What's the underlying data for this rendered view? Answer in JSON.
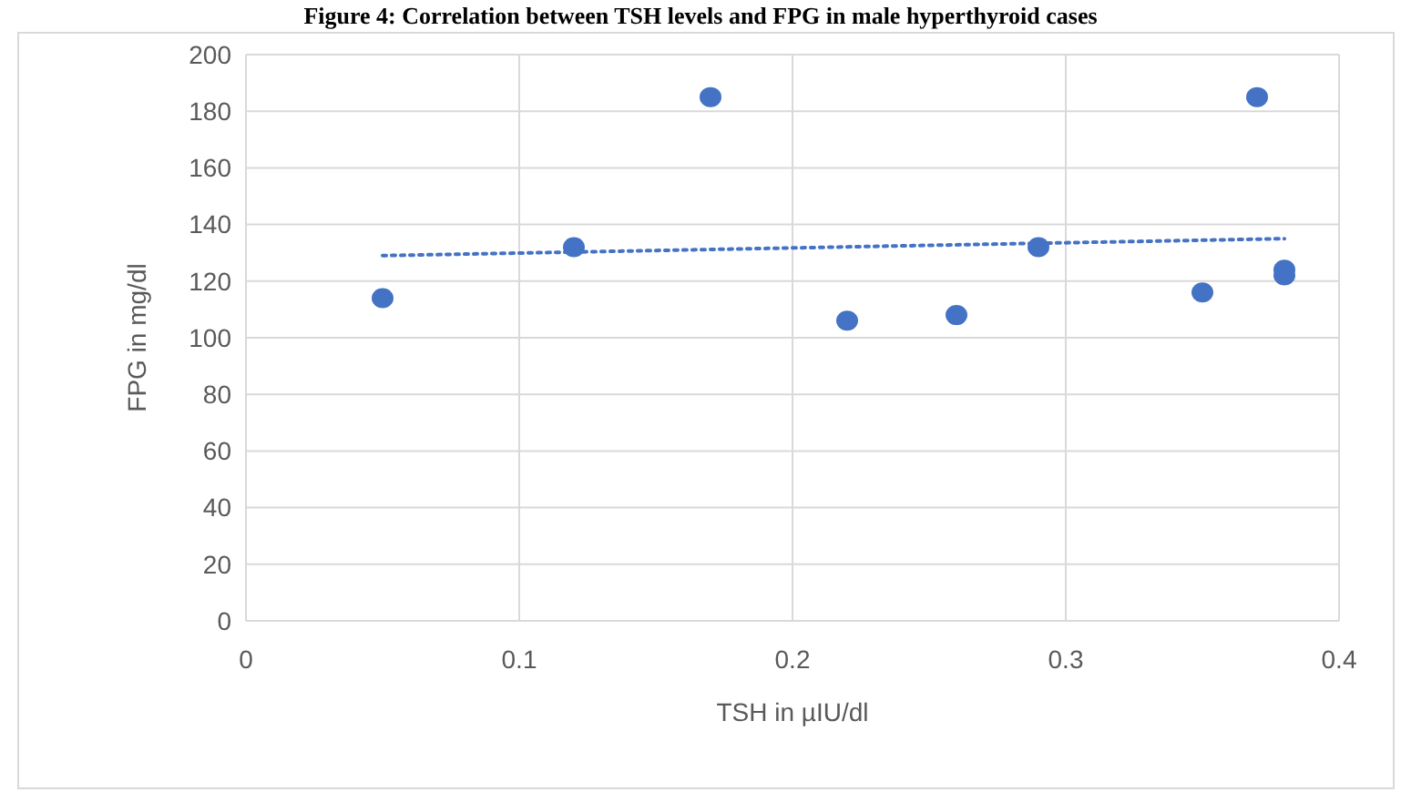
{
  "chart_data": {
    "type": "scatter",
    "title": "Figure 4: Correlation between TSH levels and FPG in male hyperthyroid cases",
    "xlabel": "TSH in µIU/dl",
    "ylabel": "FPG in mg/dl",
    "xlim": [
      0,
      0.4
    ],
    "xticks": [
      0,
      0.1,
      0.2,
      0.3,
      0.4
    ],
    "ylim": [
      0,
      200
    ],
    "yticks": [
      0,
      20,
      40,
      60,
      80,
      100,
      120,
      140,
      160,
      180,
      200
    ],
    "grid": true,
    "marker": "circle",
    "series": [
      {
        "color": "#4472c4",
        "x": [
          0.05,
          0.12,
          0.17,
          0.22,
          0.26,
          0.29,
          0.35,
          0.37,
          0.38,
          0.38
        ],
        "values": [
          114,
          132,
          185,
          106,
          108,
          132,
          116,
          185,
          124,
          122
        ]
      },
      {
        "type": "line",
        "color": "#4472c4",
        "line_style": "dotted",
        "marker": "none",
        "x": [
          0.05,
          0.38
        ],
        "values": [
          129,
          135
        ]
      }
    ]
  }
}
